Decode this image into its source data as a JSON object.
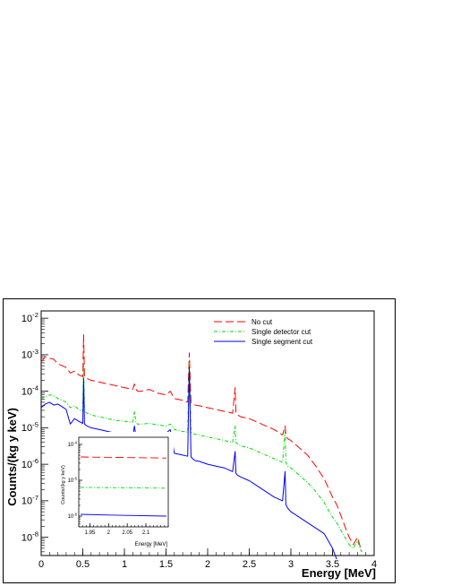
{
  "chart_data": [
    {
      "type": "line",
      "title": "",
      "xlabel": "Energy [MeV]",
      "ylabel": "Counts/(kg y keV)",
      "xlim": [
        0,
        4
      ],
      "ylim_log10": [
        -8.5,
        -1.8
      ],
      "yscale": "log",
      "grid": false,
      "legend_position": "top-right",
      "x_ticks": [
        "0",
        "0.5",
        "1",
        "1.5",
        "2",
        "2.5",
        "3",
        "3.5",
        "4"
      ],
      "y_ticks": [
        {
          "base": "10",
          "exp": "-8",
          "value": -8
        },
        {
          "base": "10",
          "exp": "-7",
          "value": -7
        },
        {
          "base": "10",
          "exp": "-6",
          "value": -6
        },
        {
          "base": "10",
          "exp": "-5",
          "value": -5
        },
        {
          "base": "10",
          "exp": "-4",
          "value": -4
        },
        {
          "base": "10",
          "exp": "-3",
          "value": -3
        },
        {
          "base": "10",
          "exp": "-2",
          "value": -2
        }
      ],
      "series": [
        {
          "name": "No cut",
          "color": "#ff0000",
          "dash": "long-dash",
          "x": [
            0.0,
            0.05,
            0.1,
            0.15,
            0.2,
            0.25,
            0.3,
            0.35,
            0.4,
            0.45,
            0.5,
            0.51,
            0.52,
            0.55,
            0.6,
            0.7,
            0.8,
            0.9,
            1.0,
            1.1,
            1.12,
            1.14,
            1.16,
            1.2,
            1.3,
            1.4,
            1.5,
            1.55,
            1.6,
            1.7,
            1.76,
            1.78,
            1.8,
            1.82,
            1.85,
            1.9,
            2.0,
            2.1,
            2.2,
            2.3,
            2.33,
            2.34,
            2.36,
            2.4,
            2.5,
            2.6,
            2.7,
            2.8,
            2.9,
            2.93,
            2.94,
            2.96,
            3.0,
            3.1,
            3.2,
            3.3,
            3.4,
            3.5,
            3.55,
            3.6,
            3.65,
            3.7,
            3.75,
            3.8,
            3.85
          ],
          "log10_values": [
            -3.2,
            -3.05,
            -3.1,
            -3.12,
            -3.25,
            -3.3,
            -3.35,
            -3.5,
            -3.45,
            -3.55,
            -3.6,
            -2.45,
            -3.6,
            -3.65,
            -3.7,
            -3.75,
            -3.8,
            -3.85,
            -3.9,
            -3.95,
            -3.8,
            -3.95,
            -4.0,
            -4.0,
            -3.95,
            -4.05,
            -4.1,
            -4.0,
            -4.2,
            -4.25,
            -4.3,
            -2.95,
            -4.3,
            -4.35,
            -4.38,
            -4.4,
            -4.45,
            -4.5,
            -4.55,
            -4.6,
            -3.9,
            -4.6,
            -4.65,
            -4.7,
            -4.75,
            -4.85,
            -4.95,
            -5.05,
            -5.2,
            -4.95,
            -5.2,
            -5.3,
            -5.35,
            -5.55,
            -5.75,
            -6.05,
            -6.4,
            -6.9,
            -7.1,
            -7.4,
            -7.7,
            -8.0,
            -8.2,
            -8.0,
            -8.4
          ]
        },
        {
          "name": "Single detector cut",
          "color": "#00dd00",
          "dash": "dash-dot",
          "x": [
            0.0,
            0.05,
            0.1,
            0.15,
            0.2,
            0.25,
            0.3,
            0.35,
            0.4,
            0.45,
            0.5,
            0.51,
            0.52,
            0.55,
            0.6,
            0.7,
            0.8,
            0.9,
            1.0,
            1.1,
            1.12,
            1.14,
            1.16,
            1.2,
            1.3,
            1.4,
            1.5,
            1.55,
            1.6,
            1.7,
            1.76,
            1.78,
            1.8,
            1.82,
            1.85,
            1.9,
            2.0,
            2.1,
            2.2,
            2.3,
            2.33,
            2.34,
            2.36,
            2.4,
            2.5,
            2.6,
            2.7,
            2.8,
            2.9,
            2.93,
            2.94,
            2.96,
            3.0,
            3.1,
            3.2,
            3.3,
            3.4,
            3.5,
            3.55,
            3.6,
            3.65,
            3.7,
            3.75,
            3.8,
            3.85
          ],
          "log10_values": [
            -4.2,
            -4.15,
            -4.1,
            -4.12,
            -4.2,
            -4.25,
            -4.3,
            -4.45,
            -4.4,
            -4.5,
            -4.55,
            -3.25,
            -4.55,
            -4.6,
            -4.65,
            -4.7,
            -4.75,
            -4.8,
            -4.82,
            -4.85,
            -4.55,
            -4.88,
            -4.9,
            -4.9,
            -4.88,
            -4.92,
            -4.95,
            -4.9,
            -5.05,
            -5.1,
            -5.12,
            -3.15,
            -5.12,
            -5.15,
            -5.18,
            -5.2,
            -5.25,
            -5.3,
            -5.35,
            -5.4,
            -4.95,
            -5.4,
            -5.45,
            -5.5,
            -5.55,
            -5.65,
            -5.75,
            -5.85,
            -5.95,
            -5.1,
            -5.95,
            -6.05,
            -6.1,
            -6.3,
            -6.5,
            -6.75,
            -7.05,
            -7.45,
            -7.6,
            -7.8,
            -8.0,
            -8.2,
            -8.3,
            -8.1,
            -8.4
          ]
        },
        {
          "name": "Single segment cut",
          "color": "#0000ff",
          "dash": "solid",
          "x": [
            0.0,
            0.05,
            0.1,
            0.15,
            0.2,
            0.25,
            0.3,
            0.35,
            0.4,
            0.45,
            0.5,
            0.51,
            0.52,
            0.55,
            0.6,
            0.7,
            0.8,
            0.9,
            1.0,
            1.1,
            1.12,
            1.14,
            1.16,
            1.2,
            1.3,
            1.4,
            1.5,
            1.55,
            1.6,
            1.7,
            1.76,
            1.78,
            1.8,
            1.82,
            1.85,
            1.9,
            2.0,
            2.1,
            2.2,
            2.3,
            2.33,
            2.34,
            2.36,
            2.4,
            2.5,
            2.6,
            2.7,
            2.8,
            2.9,
            2.93,
            2.94,
            2.96,
            3.0,
            3.1,
            3.2,
            3.3,
            3.4,
            3.45,
            3.5,
            3.55
          ],
          "log10_values": [
            -4.45,
            -4.35,
            -4.3,
            -4.38,
            -4.35,
            -4.42,
            -4.5,
            -4.9,
            -4.75,
            -4.82,
            -4.88,
            -3.65,
            -4.9,
            -4.95,
            -5.0,
            -5.05,
            -5.1,
            -5.15,
            -5.2,
            -5.25,
            -4.95,
            -5.25,
            -5.28,
            -5.3,
            -5.25,
            -5.2,
            -5.15,
            -5.05,
            -5.7,
            -5.75,
            -5.78,
            -3.35,
            -5.8,
            -5.85,
            -5.9,
            -5.92,
            -6.0,
            -6.05,
            -6.1,
            -6.2,
            -5.65,
            -6.25,
            -6.3,
            -6.35,
            -6.45,
            -6.6,
            -6.75,
            -6.9,
            -7.0,
            -6.2,
            -7.1,
            -7.2,
            -7.3,
            -7.45,
            -7.6,
            -7.75,
            -7.9,
            -8.1,
            -8.3,
            -8.6
          ]
        }
      ]
    },
    {
      "type": "line",
      "title": "",
      "xlabel": "Energy [MeV]",
      "ylabel": "Counts/(kg y keV)",
      "xlim": [
        1.92,
        2.16
      ],
      "ylim_log10": [
        -6.3,
        -3.8
      ],
      "yscale": "log",
      "x_ticks": [
        "1.95",
        "2",
        "2.05",
        "2.1"
      ],
      "x_tick_values": [
        1.95,
        2.0,
        2.05,
        2.1
      ],
      "y_ticks": [
        {
          "base": "10",
          "exp": "-6",
          "value": -6
        },
        {
          "base": "10",
          "exp": "-5",
          "value": -5
        },
        {
          "base": "10",
          "exp": "-4",
          "value": -4
        }
      ],
      "series": [
        {
          "name": "No cut",
          "color": "#ff0000",
          "dash": "long-dash",
          "x": [
            1.925,
            2.155
          ],
          "log10_values": [
            -4.35,
            -4.38
          ]
        },
        {
          "name": "Single detector cut",
          "color": "#00dd00",
          "dash": "dash-dot",
          "x": [
            1.925,
            2.155
          ],
          "log10_values": [
            -5.2,
            -5.22
          ]
        },
        {
          "name": "Single segment cut",
          "color": "#0000ff",
          "dash": "solid",
          "x": [
            1.925,
            2.0,
            2.155
          ],
          "log10_values": [
            -5.95,
            -5.97,
            -6.0
          ]
        }
      ]
    }
  ]
}
